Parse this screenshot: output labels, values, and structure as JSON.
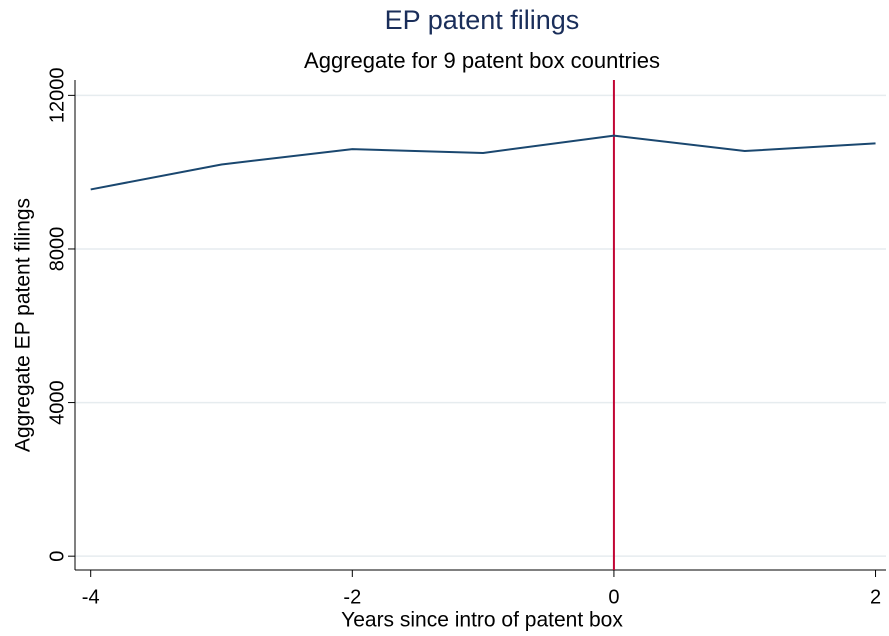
{
  "chart_data": {
    "type": "line",
    "title": "EP patent filings",
    "subtitle": "Aggregate for 9 patent box countries",
    "x_label": "Years since intro of patent box",
    "y_label": "Aggregate EP patent filings",
    "x": [
      -4,
      -3,
      -2,
      -1,
      0,
      1,
      2
    ],
    "series": [
      {
        "name": "Aggregate EP patent filings",
        "color": "#1a476f",
        "values": [
          9550,
          10200,
          10600,
          10500,
          10950,
          10550,
          10750
        ]
      }
    ],
    "xlim": [
      -4.12,
      2.08
    ],
    "xticks": [
      -4,
      -2,
      0,
      2
    ],
    "ylim": [
      -360,
      12400
    ],
    "yticks": [
      0,
      4000,
      8000,
      12000
    ],
    "grid": true,
    "vline": {
      "value": 0,
      "color": "#c10534"
    }
  }
}
